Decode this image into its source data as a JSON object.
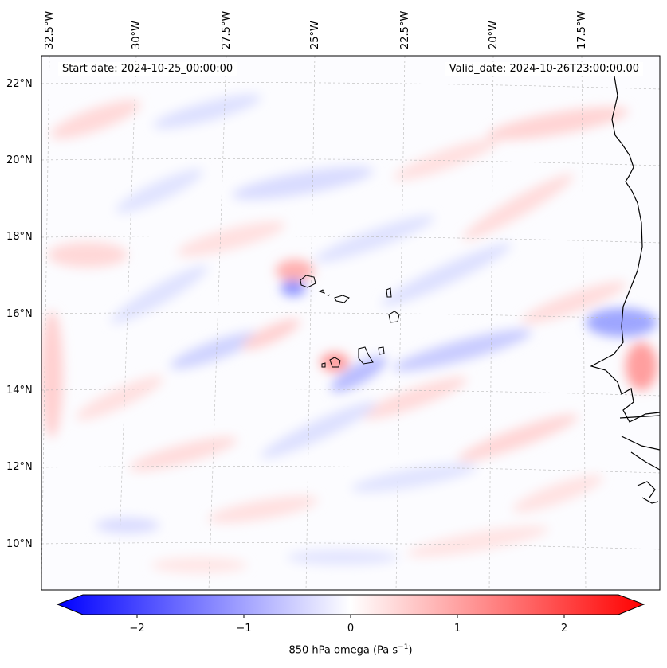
{
  "map": {
    "start_date": "Start date: 2024-10-25_00:00:00",
    "valid_date": "Valid_date: 2024-10-26T23:00:00.00",
    "lon_labels": [
      "32.5°W",
      "30°W",
      "27.5°W",
      "25°W",
      "22.5°W",
      "20°W",
      "17.5°W"
    ],
    "lat_labels": [
      "22°N",
      "20°N",
      "18°N",
      "16°N",
      "14°N",
      "12°N",
      "10°N"
    ],
    "field": "850 hPa omega",
    "colormap": "bwr",
    "colors": {
      "negative": "#0000ff",
      "neutral": "#ffffff",
      "positive": "#ff0000",
      "coastline": "#000000"
    }
  },
  "colorbar": {
    "ticks": [
      "−2",
      "−1",
      "0",
      "1",
      "2"
    ],
    "label_prefix": "850 hPa omega (Pa s",
    "label_exp": "−1",
    "label_suffix": ")",
    "range": [
      -2.5,
      2.5
    ],
    "extend": "both"
  }
}
